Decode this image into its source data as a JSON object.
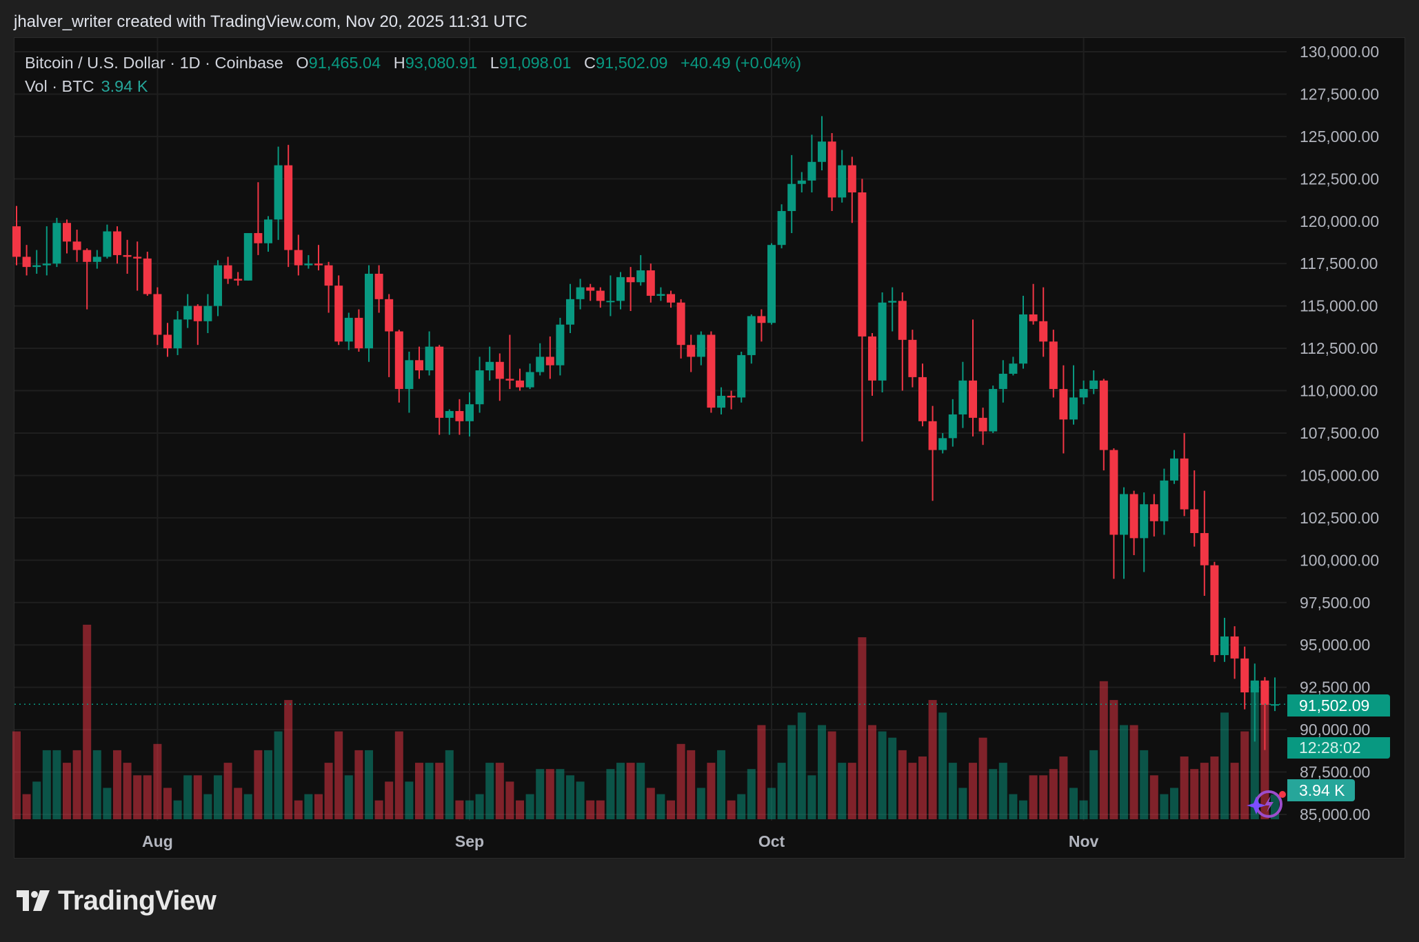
{
  "credit": "jhalver_writer created with TradingView.com, Nov 20, 2025 11:31 UTC",
  "legend": {
    "symbol": "Bitcoin / U.S. Dollar · 1D · Coinbase",
    "o_label": "O",
    "o": "91,465.04",
    "h_label": "H",
    "h": "93,080.91",
    "l_label": "L",
    "l": "91,098.01",
    "c_label": "C",
    "c": "91,502.09",
    "change": "+40.49 (+0.04%)",
    "vol_label": "Vol · BTC",
    "vol": "3.94 K"
  },
  "last_price_tag": {
    "price": "91,502.09",
    "countdown": "12:28:02"
  },
  "volume_tag": "3.94 K",
  "logo": "TradingView",
  "colors": {
    "up": "#089981",
    "down": "#f23645",
    "background": "#0f0f0f",
    "grid": "#1f1f1f"
  },
  "chart_data": {
    "type": "candlestick",
    "title": "Bitcoin / U.S. Dollar · 1D · Coinbase",
    "y_ticks": [
      "130,000.00",
      "127,500.00",
      "125,000.00",
      "122,500.00",
      "120,000.00",
      "117,500.00",
      "115,000.00",
      "112,500.00",
      "110,000.00",
      "107,500.00",
      "105,000.00",
      "102,500.00",
      "100,000.00",
      "97,500.00",
      "95,000.00",
      "92,500.00",
      "90,000.00",
      "87,500.00",
      "85,000.00"
    ],
    "y_tick_values": [
      130000,
      127500,
      125000,
      122500,
      120000,
      117500,
      115000,
      112500,
      110000,
      107500,
      105000,
      102500,
      100000,
      97500,
      95000,
      92500,
      90000,
      87500,
      85000
    ],
    "ylim": [
      85000,
      130000
    ],
    "x_ticks": [
      {
        "label": "Aug",
        "date": "2025-08-01"
      },
      {
        "label": "Sep",
        "date": "2025-09-01"
      },
      {
        "label": "Oct",
        "date": "2025-10-01"
      },
      {
        "label": "Nov",
        "date": "2025-11-01"
      }
    ],
    "grid": true,
    "volume_unit": "K BTC",
    "dates": [
      "2025-07-18",
      "2025-07-19",
      "2025-07-20",
      "2025-07-21",
      "2025-07-22",
      "2025-07-23",
      "2025-07-24",
      "2025-07-25",
      "2025-07-26",
      "2025-07-27",
      "2025-07-28",
      "2025-07-29",
      "2025-07-30",
      "2025-07-31",
      "2025-08-01",
      "2025-08-02",
      "2025-08-03",
      "2025-08-04",
      "2025-08-05",
      "2025-08-06",
      "2025-08-07",
      "2025-08-08",
      "2025-08-09",
      "2025-08-10",
      "2025-08-11",
      "2025-08-12",
      "2025-08-13",
      "2025-08-14",
      "2025-08-15",
      "2025-08-16",
      "2025-08-17",
      "2025-08-18",
      "2025-08-19",
      "2025-08-20",
      "2025-08-21",
      "2025-08-22",
      "2025-08-23",
      "2025-08-24",
      "2025-08-25",
      "2025-08-26",
      "2025-08-27",
      "2025-08-28",
      "2025-08-29",
      "2025-08-30",
      "2025-08-31",
      "2025-09-01",
      "2025-09-02",
      "2025-09-03",
      "2025-09-04",
      "2025-09-05",
      "2025-09-06",
      "2025-09-07",
      "2025-09-08",
      "2025-09-09",
      "2025-09-10",
      "2025-09-11",
      "2025-09-12",
      "2025-09-13",
      "2025-09-14",
      "2025-09-15",
      "2025-09-16",
      "2025-09-17",
      "2025-09-18",
      "2025-09-19",
      "2025-09-20",
      "2025-09-21",
      "2025-09-22",
      "2025-09-23",
      "2025-09-24",
      "2025-09-25",
      "2025-09-26",
      "2025-09-27",
      "2025-09-28",
      "2025-09-29",
      "2025-09-30",
      "2025-10-01",
      "2025-10-02",
      "2025-10-03",
      "2025-10-04",
      "2025-10-05",
      "2025-10-06",
      "2025-10-07",
      "2025-10-08",
      "2025-10-09",
      "2025-10-10",
      "2025-10-11",
      "2025-10-12",
      "2025-10-13",
      "2025-10-14",
      "2025-10-15",
      "2025-10-16",
      "2025-10-17",
      "2025-10-18",
      "2025-10-19",
      "2025-10-20",
      "2025-10-21",
      "2025-10-22",
      "2025-10-23",
      "2025-10-24",
      "2025-10-25",
      "2025-10-26",
      "2025-10-27",
      "2025-10-28",
      "2025-10-29",
      "2025-10-30",
      "2025-10-31",
      "2025-11-01",
      "2025-11-02",
      "2025-11-03",
      "2025-11-04",
      "2025-11-05",
      "2025-11-06",
      "2025-11-07",
      "2025-11-08",
      "2025-11-09",
      "2025-11-10",
      "2025-11-11",
      "2025-11-12",
      "2025-11-13",
      "2025-11-14",
      "2025-11-15",
      "2025-11-16",
      "2025-11-17",
      "2025-11-18",
      "2025-11-19",
      "2025-11-20"
    ],
    "open": [
      119700,
      117900,
      117300,
      117400,
      117500,
      119900,
      118800,
      118300,
      117600,
      117900,
      119400,
      118000,
      117900,
      117800,
      115700,
      113300,
      112500,
      114200,
      115000,
      114100,
      115000,
      117400,
      116600,
      116500,
      119300,
      118700,
      120100,
      123300,
      118300,
      117400,
      117500,
      117400,
      116200,
      112900,
      114300,
      112500,
      116900,
      115400,
      113500,
      110100,
      111800,
      111200,
      112600,
      108400,
      108800,
      108200,
      109200,
      111200,
      111700,
      110700,
      110600,
      110200,
      111100,
      112000,
      111500,
      113900,
      115400,
      116100,
      115900,
      115300,
      115300,
      116700,
      116400,
      117100,
      115600,
      115700,
      115200,
      112700,
      112000,
      113300,
      109000,
      109700,
      109600,
      112100,
      114400,
      114000,
      118600,
      120600,
      122200,
      122400,
      123500,
      124700,
      121400,
      123300,
      121700,
      113200,
      110600,
      115200,
      115300,
      113000,
      110800,
      108200,
      106500,
      107200,
      108600,
      110600,
      108400,
      107600,
      110100,
      111000,
      111600,
      114500,
      114100,
      112900,
      110100,
      108300,
      109600,
      110100,
      110600,
      106500,
      101500,
      103900,
      101300,
      103300,
      102300,
      104700,
      106000,
      103000,
      101600,
      99700,
      94400,
      95500,
      94200,
      92200,
      92900,
      91465.04
    ],
    "high": [
      120900,
      118600,
      118300,
      119700,
      120200,
      120100,
      119500,
      118400,
      118300,
      119800,
      119700,
      118900,
      118800,
      118200,
      116100,
      114000,
      114700,
      115700,
      115100,
      115700,
      117700,
      117900,
      117000,
      119300,
      122300,
      120300,
      124400,
      124500,
      119200,
      118000,
      118600,
      117600,
      116800,
      114600,
      114800,
      117400,
      117400,
      115700,
      113600,
      112300,
      112600,
      113500,
      112700,
      108900,
      109500,
      109900,
      112000,
      112600,
      112200,
      113300,
      111300,
      111600,
      112800,
      113200,
      114300,
      116300,
      116600,
      116300,
      116100,
      116800,
      117000,
      117300,
      118000,
      117500,
      116100,
      115900,
      115400,
      113300,
      113500,
      113500,
      110200,
      110000,
      112300,
      114500,
      114800,
      118700,
      121000,
      123900,
      122900,
      125100,
      126200,
      125200,
      124200,
      123800,
      122500,
      113400,
      115800,
      116100,
      115800,
      113600,
      111600,
      109100,
      107500,
      109500,
      111700,
      114200,
      109000,
      110300,
      111800,
      112000,
      115600,
      116300,
      116100,
      113600,
      111500,
      111500,
      110600,
      111200,
      110700,
      106600,
      104300,
      104100,
      104000,
      103900,
      105400,
      106500,
      107500,
      105300,
      104100,
      99900,
      96600,
      96100,
      94900,
      93900,
      93100,
      93080.91
    ],
    "low": [
      117400,
      116800,
      116900,
      116800,
      117300,
      118100,
      117600,
      114800,
      117200,
      117800,
      117500,
      116900,
      115900,
      115600,
      112700,
      112000,
      112100,
      113700,
      112700,
      113400,
      114400,
      116300,
      116200,
      116500,
      118000,
      118200,
      118900,
      117300,
      116800,
      117200,
      117100,
      114600,
      112700,
      112400,
      112300,
      111700,
      114600,
      110800,
      109300,
      108700,
      110700,
      110900,
      107400,
      107400,
      107400,
      107300,
      108700,
      110600,
      109400,
      110100,
      110000,
      110100,
      110900,
      110700,
      110900,
      113400,
      114800,
      115300,
      114900,
      114400,
      114800,
      114700,
      116200,
      115200,
      115300,
      114900,
      111900,
      111100,
      111500,
      108700,
      108600,
      108900,
      109300,
      111600,
      112900,
      113900,
      118400,
      119300,
      121700,
      121700,
      123000,
      120600,
      121100,
      119900,
      107000,
      109700,
      109900,
      113500,
      110000,
      110200,
      107900,
      103500,
      106300,
      106700,
      107800,
      107300,
      106800,
      107500,
      109300,
      110900,
      111300,
      113900,
      112000,
      109600,
      106300,
      108000,
      109200,
      109800,
      105300,
      98900,
      98900,
      100300,
      99300,
      101400,
      101500,
      104500,
      102600,
      100800,
      97900,
      94000,
      94000,
      93000,
      91200,
      89300,
      88800,
      91098.01
    ],
    "close": [
      117900,
      117300,
      117400,
      117500,
      119900,
      118800,
      118300,
      117600,
      117900,
      119400,
      118000,
      117900,
      117800,
      115700,
      113300,
      112500,
      114200,
      115000,
      114100,
      115000,
      117400,
      116600,
      116500,
      119300,
      118700,
      120100,
      123300,
      118300,
      117400,
      117500,
      117400,
      116200,
      112900,
      114300,
      112500,
      116900,
      115400,
      113500,
      110100,
      111800,
      111200,
      112600,
      108400,
      108800,
      108200,
      109200,
      111200,
      111700,
      110700,
      110600,
      110200,
      111100,
      112000,
      111500,
      113900,
      115400,
      116100,
      115900,
      115300,
      115300,
      116700,
      116400,
      117100,
      115600,
      115700,
      115200,
      112700,
      112000,
      113300,
      109000,
      109700,
      109600,
      112100,
      114400,
      114000,
      118600,
      120600,
      122200,
      122400,
      123500,
      124700,
      121400,
      123300,
      121700,
      113200,
      110600,
      115200,
      115300,
      113000,
      110800,
      108200,
      106500,
      107200,
      108600,
      110600,
      108400,
      107600,
      110100,
      111000,
      111600,
      114500,
      114100,
      112900,
      110100,
      108300,
      109600,
      110100,
      110600,
      106500,
      101500,
      103900,
      101300,
      103300,
      102300,
      104700,
      106000,
      103000,
      101600,
      99700,
      94400,
      95500,
      94200,
      92200,
      92900,
      91465,
      91502.09
    ],
    "volume": [
      14,
      4,
      6,
      11,
      11,
      9,
      11,
      31,
      11,
      5,
      11,
      9,
      7,
      7,
      12,
      5,
      3,
      7,
      7,
      4,
      7,
      9,
      5,
      4,
      11,
      11,
      14,
      19,
      3,
      4,
      4,
      9,
      14,
      7,
      11,
      11,
      3,
      6,
      14,
      6,
      9,
      9,
      9,
      11,
      3,
      3,
      4,
      9,
      9,
      6,
      3,
      4,
      8,
      8,
      8,
      7,
      6,
      3,
      3,
      8,
      9,
      9,
      9,
      5,
      4,
      3,
      12,
      11,
      5,
      9,
      11,
      3,
      4,
      8,
      15,
      5,
      9,
      15,
      17,
      7,
      15,
      14,
      9,
      9,
      29,
      15,
      14,
      13,
      11,
      9,
      10,
      19,
      17,
      9,
      5,
      9,
      13,
      8,
      9,
      4,
      3,
      7,
      7,
      8,
      10,
      5,
      3,
      11,
      22,
      19,
      15,
      15,
      11,
      7,
      4,
      5,
      10,
      8,
      9,
      10,
      17,
      9,
      14,
      22,
      19,
      3.94
    ],
    "last_price": 91502.09
  }
}
